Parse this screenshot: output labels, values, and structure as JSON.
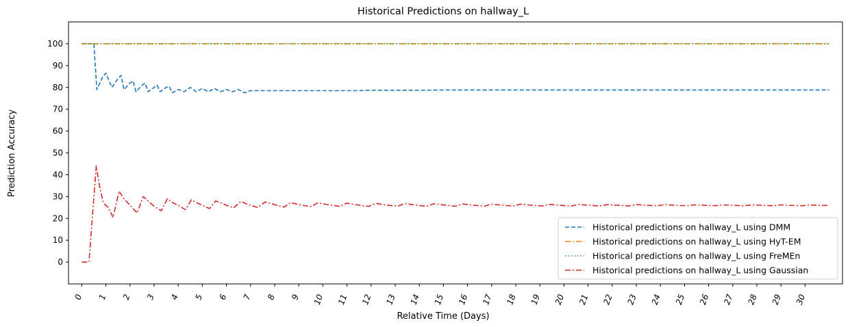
{
  "chart_data": {
    "type": "line",
    "title": "Historical Predictions on hallway_L",
    "xlabel": "Relative Time (Days)",
    "ylabel": "Prediction Accuracy",
    "xlim": [
      -0.55,
      31.55
    ],
    "ylim": [
      -10,
      110
    ],
    "xticks": [
      "0",
      "1",
      "2",
      "3",
      "4",
      "5",
      "6",
      "7",
      "8",
      "9",
      "10",
      "11",
      "12",
      "13",
      "14",
      "15",
      "16",
      "17",
      "18",
      "19",
      "20",
      "21",
      "22",
      "23",
      "24",
      "25",
      "26",
      "27",
      "28",
      "29",
      "30"
    ],
    "yticks": [
      "0",
      "10",
      "20",
      "30",
      "40",
      "50",
      "60",
      "70",
      "80",
      "90",
      "100"
    ],
    "legend_position": "lower-right",
    "grid": false,
    "series": [
      {
        "name": "Historical predictions on hallway_L using DMM",
        "color": "#1f77b4",
        "style": "dashed",
        "x": [
          0,
          0.25,
          0.5,
          0.625,
          0.75,
          0.875,
          1,
          1.25,
          1.5,
          1.625,
          1.75,
          2,
          2.125,
          2.25,
          2.5,
          2.625,
          2.75,
          3,
          3.125,
          3.25,
          3.5,
          3.625,
          3.75,
          4,
          4.25,
          4.5,
          4.75,
          5,
          5.25,
          5.5,
          5.75,
          6,
          6.25,
          6.5,
          6.75,
          7,
          7.5,
          8,
          8.5,
          9,
          9.5,
          10,
          10.5,
          11,
          11.5,
          12,
          12.5,
          13,
          13.5,
          14,
          15,
          16,
          17,
          18,
          19,
          20,
          21,
          22,
          23,
          24,
          25,
          26,
          27,
          28,
          29,
          30,
          31
        ],
        "y": [
          100,
          100,
          100,
          79,
          82,
          85,
          86.5,
          80,
          84,
          85.5,
          79,
          82,
          83,
          78,
          81,
          82,
          78,
          80,
          81,
          78,
          80,
          80.5,
          77.5,
          79,
          78,
          80,
          78,
          79.5,
          78,
          79.5,
          78,
          79,
          78,
          79,
          77.5,
          78.5,
          78.5,
          78.5,
          78.5,
          78.5,
          78.5,
          78.5,
          78.5,
          78.5,
          78.5,
          78.7,
          78.7,
          78.7,
          78.7,
          78.7,
          78.8,
          78.8,
          78.8,
          78.8,
          78.8,
          78.8,
          78.8,
          78.8,
          78.8,
          78.8,
          78.8,
          78.8,
          78.8,
          78.8,
          78.8,
          78.8,
          78.8
        ]
      },
      {
        "name": "Historical predictions on hallway_L using HyT-EM",
        "color": "#ff7f0e",
        "style": "dashdot",
        "x": [
          0,
          31
        ],
        "y": [
          100,
          100
        ]
      },
      {
        "name": "Historical predictions on hallway_L using FreMEn",
        "color": "#2ca02c",
        "style": "dotted",
        "x": [
          0,
          31
        ],
        "y": [
          100,
          100
        ]
      },
      {
        "name": "Historical predictions on hallway_L using Gaussian",
        "color": "#d62728",
        "style": "dashdot",
        "x": [
          0,
          0.3,
          0.6,
          0.75,
          0.9,
          1.1,
          1.3,
          1.55,
          1.75,
          2,
          2.3,
          2.55,
          2.8,
          3,
          3.3,
          3.55,
          3.8,
          4,
          4.3,
          4.55,
          4.8,
          5,
          5.3,
          5.55,
          5.8,
          6,
          6.3,
          6.6,
          6.8,
          7,
          7.3,
          7.6,
          7.85,
          8.1,
          8.4,
          8.65,
          8.9,
          9.15,
          9.5,
          9.8,
          10.1,
          10.4,
          10.7,
          11,
          11.3,
          11.6,
          11.9,
          12.2,
          12.5,
          12.8,
          13.1,
          13.4,
          13.7,
          14,
          14.3,
          14.6,
          14.9,
          15.2,
          15.5,
          15.8,
          16.1,
          16.4,
          16.7,
          17,
          17.3,
          17.6,
          17.9,
          18.2,
          18.5,
          18.8,
          19.1,
          19.4,
          19.7,
          20,
          20.3,
          20.6,
          20.9,
          21.2,
          21.5,
          21.8,
          22.1,
          22.4,
          22.7,
          23,
          23.3,
          23.6,
          23.9,
          24.2,
          24.5,
          24.8,
          25.1,
          25.4,
          25.7,
          26,
          26.3,
          26.6,
          26.9,
          27.2,
          27.5,
          27.8,
          28.1,
          28.4,
          28.7,
          29,
          29.3,
          29.6,
          29.9,
          30.2,
          30.5,
          30.8,
          31
        ],
        "y": [
          0,
          0,
          44,
          34,
          27,
          25,
          20.5,
          32.5,
          29,
          26,
          22.5,
          30,
          27.5,
          25.5,
          23.5,
          29,
          27,
          26,
          24,
          28.5,
          27,
          26,
          24.5,
          28,
          27,
          26,
          24.8,
          27.8,
          26.8,
          26,
          25,
          27.5,
          26.8,
          26,
          25.2,
          27.3,
          26.6,
          26,
          25.4,
          27.2,
          26.5,
          26,
          25.5,
          27,
          26.4,
          25.9,
          25.5,
          26.9,
          26.3,
          25.9,
          25.6,
          26.8,
          26.3,
          25.9,
          25.6,
          26.7,
          26.3,
          25.9,
          25.6,
          26.6,
          26.2,
          25.9,
          25.6,
          26.5,
          26.2,
          25.9,
          25.7,
          26.5,
          26.2,
          25.9,
          25.7,
          26.4,
          26.1,
          25.9,
          25.7,
          26.4,
          26.1,
          25.9,
          25.7,
          26.3,
          26.1,
          25.9,
          25.7,
          26.3,
          26.1,
          25.9,
          25.8,
          26.3,
          26.1,
          25.9,
          25.8,
          26.2,
          26.1,
          25.9,
          25.8,
          26.2,
          26,
          25.9,
          25.8,
          26.2,
          26,
          25.9,
          25.8,
          26.2,
          26,
          25.9,
          25.8,
          26.2,
          26,
          25.9,
          26
        ]
      }
    ]
  }
}
